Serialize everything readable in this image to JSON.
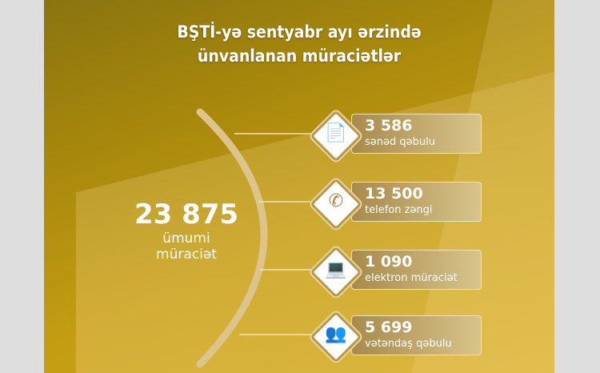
{
  "title": [
    "BŞTİ-yə sentyabr ayı ərzində",
    "ünvanlanan müraciətlər"
  ],
  "total": {
    "value": "23 875",
    "label": [
      "ümumi",
      "müraciət"
    ]
  },
  "items": [
    {
      "value": "3 586",
      "label": "sənəd qəbulu",
      "icon": "documents-icon"
    },
    {
      "value": "13 500",
      "label": "telefon zəngi",
      "icon": "phone-icon"
    },
    {
      "value": "1 090",
      "label": "elektron müraciət",
      "icon": "computer-icon"
    },
    {
      "value": "5 699",
      "label": "vətəndaş qəbulu",
      "icon": "people-icon"
    }
  ],
  "colors": {
    "accent": "#c29c12",
    "card": "#b89850"
  }
}
